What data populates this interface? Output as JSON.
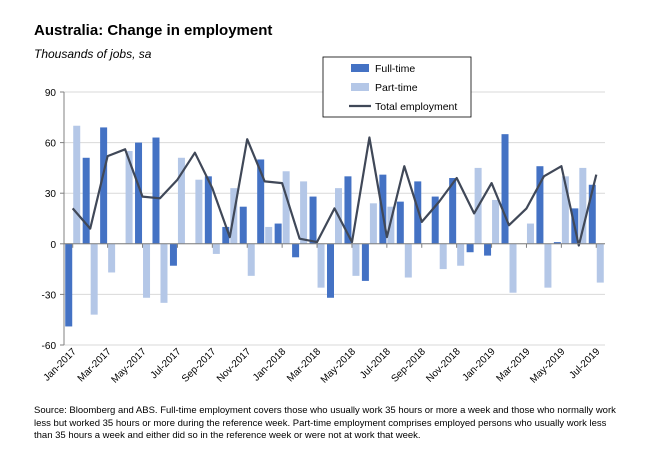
{
  "chart_data": {
    "type": "bar",
    "title": "Australia: Change in employment",
    "subtitle": "Thousands of jobs, sa",
    "ylim": [
      -60,
      90
    ],
    "yticks": [
      -60,
      -30,
      0,
      30,
      60,
      90
    ],
    "grid": true,
    "legend_position": "top-right",
    "x_tick_labels": [
      "Jan-2017",
      "Mar-2017",
      "May-2017",
      "Jul-2017",
      "Sep-2017",
      "Nov-2017",
      "Jan-2018",
      "Mar-2018",
      "May-2018",
      "Jul-2018",
      "Sep-2018",
      "Nov-2018",
      "Jan-2019",
      "Mar-2019",
      "May-2019",
      "Jul-2019"
    ],
    "categories": [
      "Jan-2017",
      "Feb-2017",
      "Mar-2017",
      "Apr-2017",
      "May-2017",
      "Jun-2017",
      "Jul-2017",
      "Aug-2017",
      "Sep-2017",
      "Oct-2017",
      "Nov-2017",
      "Dec-2017",
      "Jan-2018",
      "Feb-2018",
      "Mar-2018",
      "Apr-2018",
      "May-2018",
      "Jun-2018",
      "Jul-2018",
      "Aug-2018",
      "Sep-2018",
      "Oct-2018",
      "Nov-2018",
      "Dec-2018",
      "Jan-2019",
      "Feb-2019",
      "Mar-2019",
      "Apr-2019",
      "May-2019",
      "Jun-2019",
      "Jul-2019"
    ],
    "series": [
      {
        "name": "Full-time",
        "type": "bar",
        "color": "#4472c4",
        "values": [
          -49,
          51,
          69,
          0,
          60,
          63,
          -13,
          0,
          40,
          10,
          22,
          50,
          12,
          -8,
          28,
          -32,
          40,
          -22,
          41,
          25,
          37,
          28,
          39,
          -5,
          -7,
          65,
          0,
          46,
          1,
          21,
          35
        ]
      },
      {
        "name": "Part-time",
        "type": "bar",
        "color": "#b4c7e7",
        "values": [
          70,
          -42,
          -17,
          55,
          -32,
          -35,
          51,
          38,
          -6,
          33,
          -19,
          10,
          43,
          37,
          -26,
          33,
          -19,
          24,
          22,
          -20,
          0,
          -15,
          -13,
          45,
          26,
          -29,
          12,
          -26,
          40,
          45,
          -23
        ]
      },
      {
        "name": "Total employment",
        "type": "line",
        "color": "#404858",
        "values": [
          21,
          9,
          52,
          56,
          28,
          27,
          38,
          54,
          33,
          4,
          62,
          37,
          36,
          3,
          1,
          21,
          1,
          63,
          4,
          46,
          13,
          25,
          39,
          18,
          36,
          11,
          21,
          40,
          46,
          -1,
          41
        ]
      }
    ]
  },
  "source_note": "Source: Bloomberg and ABS.  Full-time employment covers those who usually work 35 hours or more a week and those who normally work less but worked 35 hours or  more during the reference week.  Part-time employment comprises employed persons who usually work less than 35 hours a week and either did so in the reference week or were not at work that week."
}
